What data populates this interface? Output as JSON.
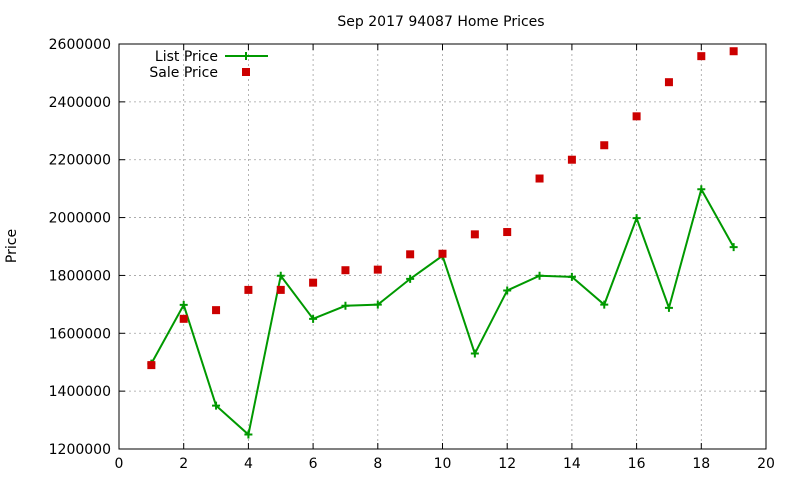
{
  "chart_data": {
    "type": "line",
    "title": "Sep 2017 94087 Home Prices",
    "xlabel": "",
    "ylabel": "Price",
    "xlim": [
      0,
      20
    ],
    "ylim": [
      1200000,
      2600000
    ],
    "x_ticks": [
      0,
      2,
      4,
      6,
      8,
      10,
      12,
      14,
      16,
      18,
      20
    ],
    "y_ticks": [
      1200000,
      1400000,
      1600000,
      1800000,
      2000000,
      2200000,
      2400000,
      2600000
    ],
    "grid": true,
    "legend_position": "top-left",
    "series": [
      {
        "name": "List Price",
        "style": "line+cross",
        "color": "#009900",
        "points": [
          [
            1,
            1495000
          ],
          [
            2,
            1698000
          ],
          [
            3,
            1350000
          ],
          [
            4,
            1250000
          ],
          [
            5,
            1799000
          ],
          [
            6,
            1650000
          ],
          [
            7,
            1695000
          ],
          [
            8,
            1699000
          ],
          [
            9,
            1788000
          ],
          [
            10,
            1868000
          ],
          [
            11,
            1530000
          ],
          [
            12,
            1748000
          ],
          [
            13,
            1799000
          ],
          [
            14,
            1795000
          ],
          [
            15,
            1699000
          ],
          [
            16,
            1998000
          ],
          [
            17,
            1688000
          ],
          [
            18,
            2098000
          ],
          [
            19,
            1898000
          ]
        ]
      },
      {
        "name": "Sale Price",
        "style": "square",
        "color": "#cc0000",
        "points": [
          [
            1,
            1490000
          ],
          [
            2,
            1650000
          ],
          [
            3,
            1680000
          ],
          [
            4,
            1750000
          ],
          [
            5,
            1750000
          ],
          [
            6,
            1775000
          ],
          [
            7,
            1818000
          ],
          [
            8,
            1820000
          ],
          [
            9,
            1873000
          ],
          [
            10,
            1875000
          ],
          [
            11,
            1942000
          ],
          [
            12,
            1950000
          ],
          [
            13,
            2135000
          ],
          [
            14,
            2200000
          ],
          [
            15,
            2250000
          ],
          [
            16,
            2350000
          ],
          [
            17,
            2468000
          ],
          [
            18,
            2558000
          ],
          [
            19,
            2575000
          ]
        ]
      }
    ]
  }
}
